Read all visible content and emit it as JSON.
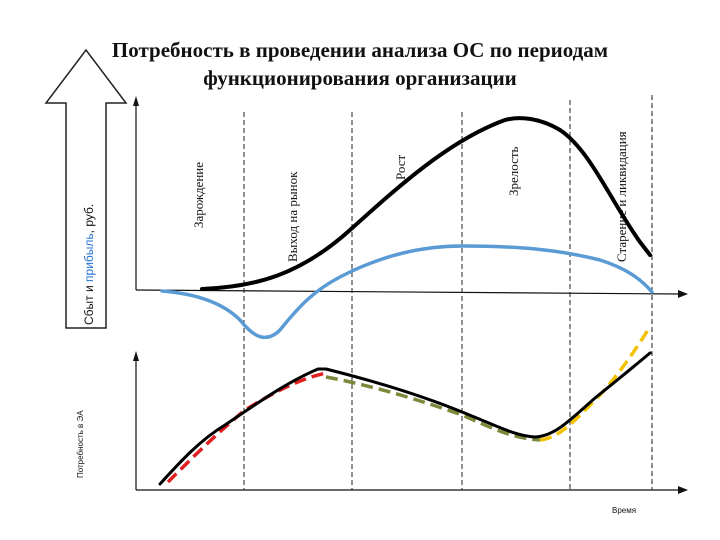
{
  "title": {
    "line1": "Потребность в проведении анализа ОС по периодам",
    "line2": "функционирования организации"
  },
  "axis_top": {
    "label_plain": "Сбыт и ",
    "label_accent": "прибыль",
    "label_tail": ", руб."
  },
  "axis_bottom": {
    "label": "Потребность в ЭА",
    "x_label": "Время"
  },
  "periods": [
    "Зарождение",
    "Выход на рынок",
    "Рост",
    "Зрелость",
    "Старение и ликвидация"
  ],
  "colors": {
    "sales": "#000000",
    "profit": "#5b9bd5",
    "need_main": "#000000",
    "dash_red": "#e02020",
    "dash_olive": "#7a8a3a",
    "dash_yellow": "#f2c200",
    "arrow_fill": "#ffffff",
    "accent_text": "#1f6fd0"
  }
}
